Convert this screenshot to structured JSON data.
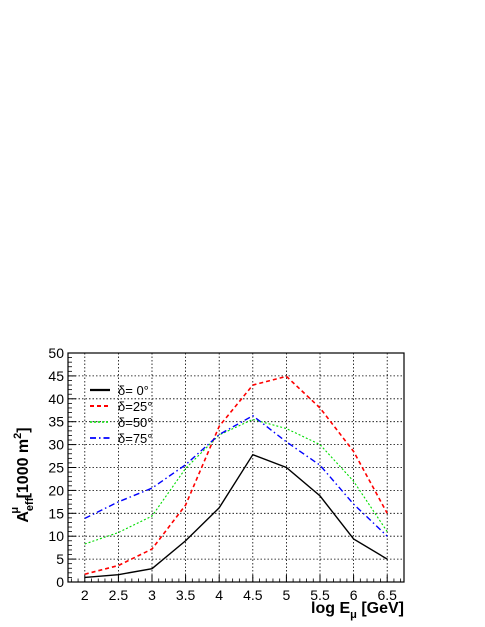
{
  "chart_data": {
    "type": "line",
    "title": "",
    "xlabel": "log E_μ [GeV]",
    "ylabel": "A^μ_eff [1000 m²]",
    "xlim": [
      1.75,
      6.75
    ],
    "ylim": [
      0,
      50
    ],
    "x_ticks": [
      2,
      2.5,
      3,
      3.5,
      4,
      4.5,
      5,
      5.5,
      6,
      6.5
    ],
    "x_tick_labels": [
      "2",
      "2.5",
      "3",
      "3.5",
      "4",
      "4.5",
      "5",
      "5.5",
      "6",
      "6.5"
    ],
    "y_ticks": [
      0,
      5,
      10,
      15,
      20,
      25,
      30,
      35,
      40,
      45,
      50
    ],
    "y_tick_labels": [
      "0",
      "5",
      "10",
      "15",
      "20",
      "25",
      "30",
      "35",
      "40",
      "45",
      "50"
    ],
    "grid": true,
    "legend_position": "top-left",
    "x": [
      2,
      2.5,
      3,
      3.5,
      4,
      4.5,
      5,
      5.5,
      6,
      6.5
    ],
    "series": [
      {
        "name": "δ= 0°",
        "color": "#000000",
        "dash": "solid",
        "values": [
          1.0,
          1.6,
          2.9,
          9.0,
          16.2,
          27.8,
          25.0,
          18.8,
          9.4,
          5.0
        ]
      },
      {
        "name": "δ=25°",
        "color": "#ff0000",
        "dash": "dashed",
        "values": [
          1.7,
          3.6,
          7.2,
          16.8,
          34.0,
          43.0,
          44.9,
          38.0,
          28.5,
          15.0
        ]
      },
      {
        "name": "δ=50°",
        "color": "#00dd00",
        "dash": "dotted",
        "values": [
          8.3,
          10.8,
          14.4,
          24.8,
          32.1,
          35.5,
          33.5,
          30.0,
          22.0,
          11.0
        ]
      },
      {
        "name": "δ=75°",
        "color": "#0000ff",
        "dash": "dashdot",
        "values": [
          13.9,
          17.5,
          20.5,
          25.6,
          32.2,
          36.3,
          30.6,
          25.5,
          17.0,
          10.0
        ]
      }
    ]
  }
}
